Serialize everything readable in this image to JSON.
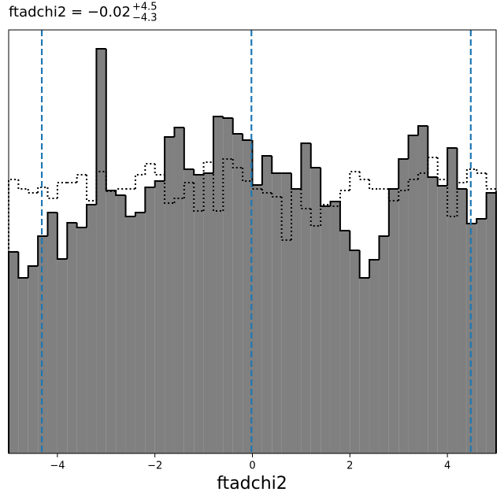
{
  "chart_data": {
    "type": "histogram",
    "title": "ftadchi2 = −0.02",
    "title_sup": "+4.5",
    "title_sub": "−4.3",
    "xlabel": "ftadchi2",
    "bins": [
      -5,
      -4.8,
      -4.6,
      -4.4,
      -4.2,
      -4,
      -3.8,
      -3.6,
      -3.4,
      -3.2,
      -3,
      -2.8,
      -2.6,
      -2.4,
      -2.2,
      -2,
      -1.8,
      -1.6,
      -1.4,
      -1.2,
      -1,
      -0.8,
      -0.6,
      -0.4,
      -0.2,
      0,
      0.2,
      0.4,
      0.6,
      0.8,
      1,
      1.2,
      1.4,
      1.6,
      1.8,
      2,
      2.2,
      2.4,
      2.6,
      2.8,
      3,
      3.2,
      3.4,
      3.6,
      3.8,
      4,
      4.2,
      4.4,
      4.6,
      4.8,
      5
    ],
    "series": [
      {
        "color": "#808080",
        "edgecolor": "#000000",
        "filled": true,
        "values": [
          256,
          223,
          238,
          276,
          306,
          247,
          293,
          287,
          316,
          514,
          334,
          328,
          301,
          306,
          338,
          346,
          402,
          414,
          361,
          354,
          356,
          428,
          426,
          406,
          398,
          341,
          378,
          356,
          356,
          336,
          394,
          363,
          314,
          320,
          283,
          258,
          223,
          246,
          276,
          336,
          374,
          404,
          416,
          351,
          340,
          388,
          336,
          292,
          298,
          331
        ]
      },
      {
        "color": "#000000",
        "filled": false,
        "dotted": true,
        "values": [
          348,
          336,
          331,
          338,
          324,
          344,
          344,
          354,
          321,
          358,
          333,
          336,
          336,
          354,
          368,
          354,
          318,
          324,
          344,
          308,
          370,
          308,
          374,
          363,
          346,
          336,
          331,
          326,
          271,
          336,
          311,
          289,
          316,
          314,
          334,
          358,
          348,
          336,
          336,
          321,
          334,
          348,
          356,
          376,
          348,
          301,
          344,
          361,
          356,
          336
        ]
      }
    ],
    "quantiles": [
      -4.32,
      -0.02,
      4.48
    ],
    "quantile_color": "#1f77b4",
    "xlim": [
      -5,
      5
    ],
    "ylim": [
      0,
      538
    ],
    "xticks": [
      {
        "value": -4,
        "label": "−4"
      },
      {
        "value": -2,
        "label": "−2"
      },
      0,
      2,
      4
    ]
  }
}
